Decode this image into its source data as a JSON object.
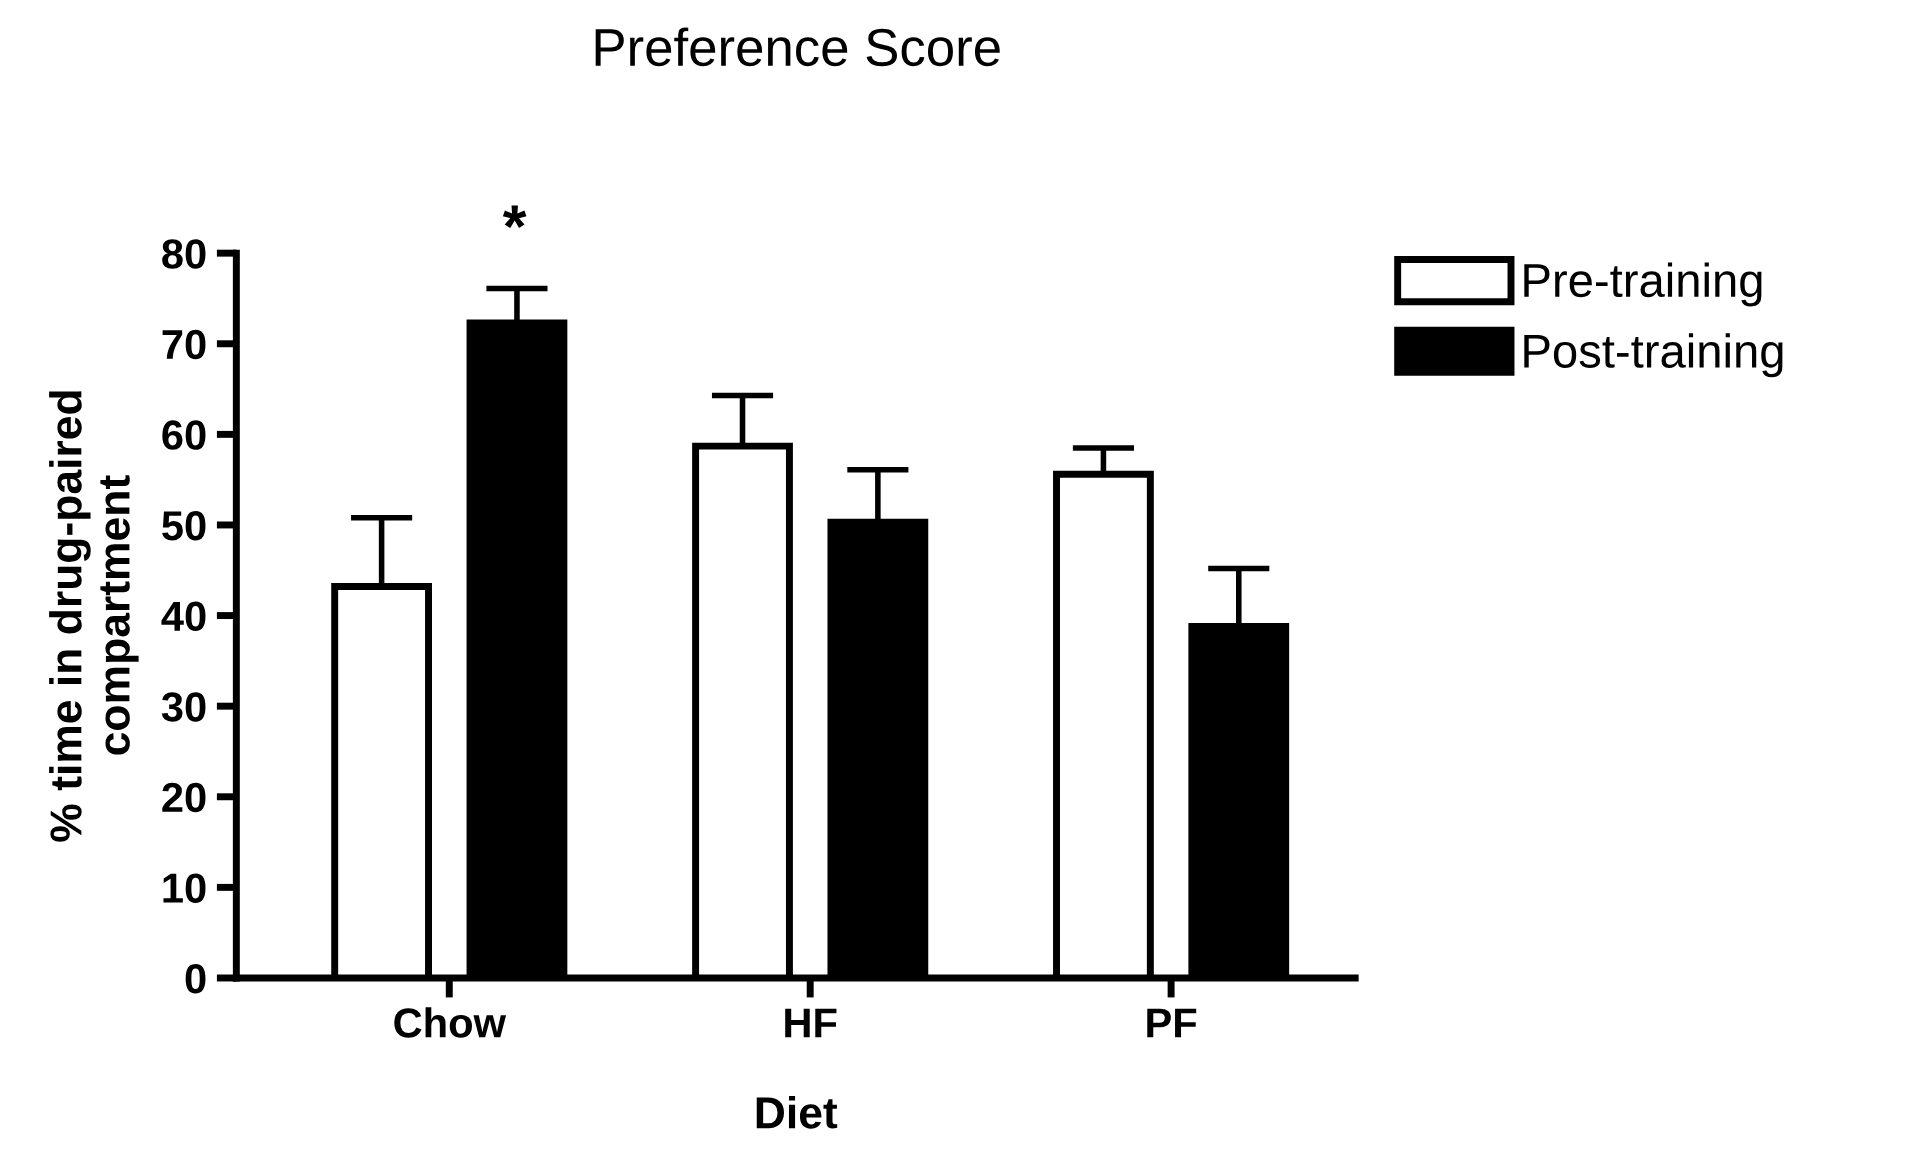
{
  "chart_data": {
    "type": "bar",
    "title": "Preference Score",
    "xlabel": "Diet",
    "ylabel": "% time in drug-paired\ncompartment",
    "categories": [
      "Chow",
      "HF",
      "PF"
    ],
    "series": [
      {
        "name": "Pre-training",
        "color": "#ffffff",
        "values": [
          43.2,
          58.7,
          55.6
        ],
        "errors": [
          [
            43.2,
            50.8
          ],
          [
            58.7,
            64.3
          ],
          [
            55.6,
            58.5
          ]
        ]
      },
      {
        "name": "Post-training",
        "color": "#000000",
        "values": [
          72.3,
          50.3,
          38.8
        ],
        "errors": [
          [
            72.3,
            76.1
          ],
          [
            50.3,
            56.1
          ],
          [
            38.8,
            45.2
          ]
        ]
      }
    ],
    "annotations": [
      "*"
    ],
    "ylim": [
      0,
      80
    ],
    "yticks": [
      0,
      10,
      20,
      30,
      40,
      50,
      60,
      70,
      80
    ],
    "grid": false,
    "legend": "top right"
  }
}
